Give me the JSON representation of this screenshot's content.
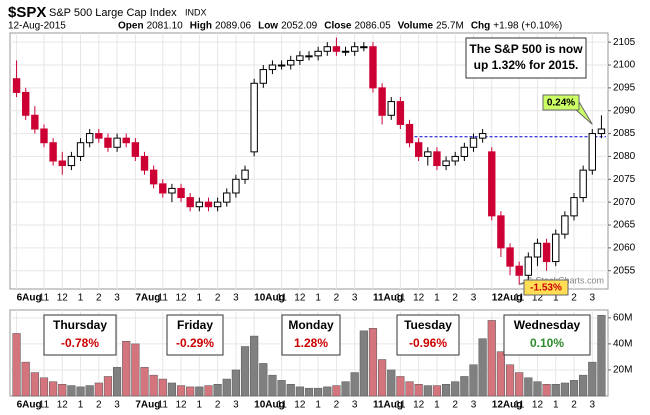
{
  "chart_data": {
    "type": "candlestick",
    "symbol": "$SPX",
    "name": "S&P 500 Large Cap Index",
    "exchange": "INDX",
    "date": "12-Aug-2015",
    "stats": [
      {
        "label": "Open",
        "value": "2081.10"
      },
      {
        "label": "High",
        "value": "2089.06"
      },
      {
        "label": "Low",
        "value": "2052.09"
      },
      {
        "label": "Close",
        "value": "2086.05"
      },
      {
        "label": "Volume",
        "value": "25.7M"
      },
      {
        "label": "Chg",
        "value": "+1.98 (+0.10%)"
      }
    ],
    "note_lines": [
      "The S&P 500 is now",
      "up 1.32% for 2015."
    ],
    "callouts": [
      "0.24%",
      "-1.53%"
    ],
    "watermark": "© StockCharts.com",
    "day_boxes": [
      {
        "day": "Thursday",
        "change": "-0.78%",
        "color": "#cc0000"
      },
      {
        "day": "Friday",
        "change": "-0.29%",
        "color": "#cc0000"
      },
      {
        "day": "Monday",
        "change": "1.28%",
        "color": "#cc0000"
      },
      {
        "day": "Tuesday",
        "change": "-0.96%",
        "color": "#cc0000"
      },
      {
        "day": "Wednesday",
        "change": "0.10%",
        "color": "#2e8b2e"
      }
    ],
    "ohlc": [
      [
        2097,
        2101,
        2093,
        2094
      ],
      [
        2094,
        2095,
        2088,
        2089
      ],
      [
        2089,
        2091,
        2085,
        2086
      ],
      [
        2086,
        2087,
        2082,
        2083
      ],
      [
        2083,
        2084,
        2078,
        2079
      ],
      [
        2079,
        2081,
        2076,
        2078
      ],
      [
        2078,
        2081,
        2077,
        2080
      ],
      [
        2080,
        2084,
        2079,
        2083
      ],
      [
        2083,
        2086,
        2082,
        2085
      ],
      [
        2085,
        2086,
        2083,
        2084
      ],
      [
        2084,
        2085,
        2081,
        2082
      ],
      [
        2082,
        2085,
        2081,
        2084
      ],
      [
        2084,
        2085,
        2082,
        2083
      ],
      [
        2083,
        2084,
        2079,
        2080
      ],
      [
        2080,
        2081,
        2076,
        2077
      ],
      [
        2077,
        2078,
        2073,
        2074
      ],
      [
        2074,
        2075,
        2071,
        2072
      ],
      [
        2072,
        2074,
        2070,
        2073
      ],
      [
        2073,
        2074,
        2070,
        2071
      ],
      [
        2071,
        2072,
        2068,
        2069
      ],
      [
        2069,
        2071,
        2068,
        2070
      ],
      [
        2070,
        2071,
        2068,
        2069
      ],
      [
        2069,
        2071,
        2068,
        2070
      ],
      [
        2070,
        2073,
        2069,
        2072
      ],
      [
        2072,
        2076,
        2071,
        2075
      ],
      [
        2075,
        2078,
        2074,
        2077
      ],
      [
        2081,
        2097,
        2080,
        2096
      ],
      [
        2096,
        2100,
        2095,
        2099
      ],
      [
        2099,
        2101,
        2098,
        2100
      ],
      [
        2100,
        2101,
        2099,
        2100
      ],
      [
        2100,
        2102,
        2099,
        2101
      ],
      [
        2101,
        2103,
        2100,
        2102
      ],
      [
        2102,
        2103,
        2101,
        2102
      ],
      [
        2102,
        2104,
        2101,
        2103
      ],
      [
        2103,
        2105,
        2102,
        2104
      ],
      [
        2104,
        2106,
        2102,
        2103
      ],
      [
        2103,
        2104,
        2102,
        2103
      ],
      [
        2103,
        2105,
        2102,
        2104
      ],
      [
        2104,
        2105,
        2103,
        2104
      ],
      [
        2104,
        2105,
        2094,
        2095
      ],
      [
        2095,
        2096,
        2087,
        2089
      ],
      [
        2089,
        2093,
        2088,
        2092
      ],
      [
        2092,
        2093,
        2086,
        2087
      ],
      [
        2087,
        2088,
        2082,
        2083
      ],
      [
        2083,
        2084,
        2079,
        2080
      ],
      [
        2080,
        2082,
        2078,
        2081
      ],
      [
        2081,
        2082,
        2077,
        2078
      ],
      [
        2078,
        2080,
        2077,
        2079
      ],
      [
        2079,
        2081,
        2078,
        2080
      ],
      [
        2080,
        2083,
        2079,
        2082
      ],
      [
        2082,
        2085,
        2081,
        2084
      ],
      [
        2084,
        2086,
        2083,
        2085
      ],
      [
        2081,
        2082,
        2066,
        2067
      ],
      [
        2067,
        2068,
        2058,
        2060
      ],
      [
        2060,
        2061,
        2054,
        2056
      ],
      [
        2056,
        2057,
        2052,
        2054
      ],
      [
        2054,
        2059,
        2053,
        2058
      ],
      [
        2058,
        2062,
        2056,
        2061
      ],
      [
        2061,
        2062,
        2055,
        2057
      ],
      [
        2057,
        2064,
        2056,
        2063
      ],
      [
        2063,
        2068,
        2062,
        2067
      ],
      [
        2067,
        2072,
        2066,
        2071
      ],
      [
        2071,
        2078,
        2070,
        2077
      ],
      [
        2077,
        2086,
        2076,
        2085
      ],
      [
        2085,
        2089,
        2084,
        2086
      ]
    ],
    "volume": [
      48,
      26,
      18,
      14,
      11,
      9,
      8,
      7,
      8,
      10,
      15,
      22,
      42,
      40,
      22,
      16,
      13,
      10,
      8,
      7,
      7,
      8,
      9,
      13,
      20,
      38,
      46,
      25,
      16,
      12,
      9,
      7,
      6,
      6,
      7,
      8,
      11,
      18,
      50,
      52,
      28,
      20,
      15,
      11,
      9,
      8,
      8,
      9,
      11,
      15,
      24,
      44,
      58,
      34,
      24,
      18,
      14,
      11,
      9,
      9,
      10,
      12,
      16,
      26,
      62
    ],
    "up_color": "#000000",
    "down_color": "#cc0033",
    "volume_up_color": "#808080",
    "volume_down_color": "#d4757e",
    "reference_line": 2084.3,
    "reference_color": "#0000cc",
    "ylim": [
      2051,
      2107
    ],
    "yticks": [
      2055,
      2060,
      2065,
      2070,
      2075,
      2080,
      2085,
      2090,
      2095,
      2100,
      2105
    ],
    "volume_ylim": [
      0,
      66
    ],
    "volume_ticks": [
      {
        "value": 20,
        "label": "20M"
      },
      {
        "value": 40,
        "label": "40M"
      },
      {
        "value": 60,
        "label": "60M"
      }
    ],
    "xticks": [
      {
        "value": 0,
        "label": "6Aug"
      },
      {
        "value": 3,
        "label": "11"
      },
      {
        "value": 5,
        "label": "12"
      },
      {
        "value": 7,
        "label": "1"
      },
      {
        "value": 9,
        "label": "2"
      },
      {
        "value": 11,
        "label": "3"
      },
      {
        "value": 13,
        "label": "7Aug"
      },
      {
        "value": 16,
        "label": "11"
      },
      {
        "value": 18,
        "label": "12"
      },
      {
        "value": 20,
        "label": "1"
      },
      {
        "value": 22,
        "label": "2"
      },
      {
        "value": 24,
        "label": "3"
      },
      {
        "value": 26,
        "label": "10Aug"
      },
      {
        "value": 29,
        "label": "11"
      },
      {
        "value": 31,
        "label": "12"
      },
      {
        "value": 33,
        "label": "1"
      },
      {
        "value": 35,
        "label": "2"
      },
      {
        "value": 37,
        "label": "3"
      },
      {
        "value": 39,
        "label": "11Aug"
      },
      {
        "value": 42,
        "label": "11"
      },
      {
        "value": 44,
        "label": "12"
      },
      {
        "value": 46,
        "label": "1"
      },
      {
        "value": 48,
        "label": "2"
      },
      {
        "value": 50,
        "label": "3"
      },
      {
        "value": 52,
        "label": "12Aug"
      },
      {
        "value": 55,
        "label": "11"
      },
      {
        "value": 57,
        "label": "12"
      },
      {
        "value": 59,
        "label": "1"
      },
      {
        "value": 61,
        "label": "2"
      },
      {
        "value": 63,
        "label": "3"
      }
    ],
    "grid": true
  }
}
